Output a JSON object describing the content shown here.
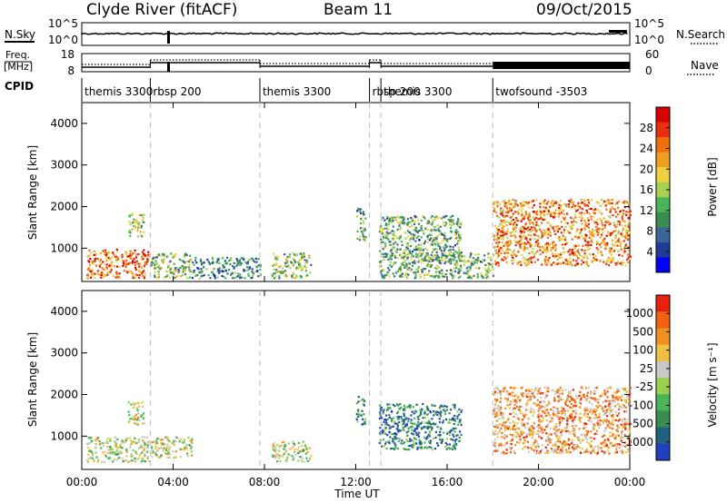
{
  "header": {
    "station": "Clyde River (fitACF)",
    "beam": "Beam 11",
    "date": "09/Oct/2015"
  },
  "panels": {
    "noise": {
      "left_label": "N.Sky",
      "left_ticks": [
        "10^5",
        "10^0"
      ],
      "right_label": "N.Search",
      "right_ticks": [
        "10^5",
        "10^0"
      ]
    },
    "freq": {
      "left_label_top": "Freq.",
      "left_label_unit": "[MHz]",
      "left_ticks": [
        "18",
        "8"
      ],
      "right_label": "Nave",
      "right_ticks": [
        "60",
        "0"
      ]
    },
    "cpid": {
      "label": "CPID",
      "segments": [
        {
          "name": "themis 3300",
          "start": 0.0,
          "end": 3.0
        },
        {
          "name": "rbsp 200",
          "start": 3.0,
          "end": 7.8
        },
        {
          "name": "themis 3300",
          "start": 7.8,
          "end": 12.6
        },
        {
          "name": "rbsp 200",
          "start": 12.6,
          "end": 13.1
        },
        {
          "name": "themis 3300",
          "start": 13.1,
          "end": 18.0
        },
        {
          "name": "twofsound -3503",
          "start": 18.0,
          "end": 24.0
        }
      ]
    }
  },
  "chart_data": [
    {
      "type": "heatmap",
      "name": "power",
      "ylabel": "Slant Range [km]",
      "yticks": [
        "4000",
        "3000",
        "2000",
        "1000"
      ],
      "ylim": [
        200,
        4500
      ],
      "colorbar_label": "Power [dB]",
      "colorbar_ticks": [
        "28",
        "24",
        "20",
        "16",
        "12",
        "8",
        "4"
      ],
      "colorbar_colors": [
        "#0000ff",
        "#1e3c96",
        "#3c6496",
        "#3a8c50",
        "#4ab45a",
        "#a8d050",
        "#f0d040",
        "#f0a020",
        "#f07010",
        "#e83010",
        "#d80000"
      ],
      "scatter_regions": [
        {
          "t0": 0.2,
          "t1": 2.9,
          "r0": 300,
          "r1": 1000,
          "level": 0.78
        },
        {
          "t0": 2.0,
          "t1": 2.7,
          "r0": 1300,
          "r1": 1850,
          "level": 0.5
        },
        {
          "t0": 3.0,
          "t1": 4.8,
          "r0": 300,
          "r1": 900,
          "level": 0.45
        },
        {
          "t0": 4.8,
          "t1": 7.8,
          "r0": 300,
          "r1": 800,
          "level": 0.3
        },
        {
          "t0": 8.3,
          "t1": 10.0,
          "r0": 300,
          "r1": 900,
          "level": 0.45
        },
        {
          "t0": 12.0,
          "t1": 12.4,
          "r0": 1200,
          "r1": 2000,
          "level": 0.35
        },
        {
          "t0": 13.0,
          "t1": 16.6,
          "r0": 700,
          "r1": 1800,
          "level": 0.38
        },
        {
          "t0": 13.0,
          "t1": 18.0,
          "r0": 300,
          "r1": 900,
          "level": 0.4
        },
        {
          "t0": 18.0,
          "t1": 24.0,
          "r0": 600,
          "r1": 2200,
          "level": 0.72
        }
      ]
    },
    {
      "type": "heatmap",
      "name": "velocity",
      "ylabel": "Slant Range [km]",
      "yticks": [
        "4000",
        "3000",
        "2000",
        "1000"
      ],
      "ylim": [
        200,
        4500
      ],
      "xlabel": "Time UT",
      "xticks": [
        "00:00",
        "04:00",
        "08:00",
        "12:00",
        "16:00",
        "20:00",
        "00:00"
      ],
      "xlim": [
        0,
        24
      ],
      "colorbar_label": "Velocity [m s⁻¹]",
      "colorbar_ticks": [
        "1000",
        "500",
        "100",
        "25",
        "-25",
        "-100",
        "-500",
        "-1000"
      ],
      "colorbar_colors": [
        "#2040c0",
        "#206080",
        "#3a8c50",
        "#4ab45a",
        "#9ad050",
        "#c8c8c8",
        "#f0c040",
        "#f09020",
        "#f06010",
        "#e82010"
      ],
      "scatter_regions": [
        {
          "t0": 0.2,
          "t1": 2.9,
          "r0": 400,
          "r1": 1000,
          "level": 0.5
        },
        {
          "t0": 2.0,
          "t1": 2.7,
          "r0": 1300,
          "r1": 1850,
          "level": 0.55
        },
        {
          "t0": 3.0,
          "t1": 4.8,
          "r0": 500,
          "r1": 1000,
          "level": 0.52
        },
        {
          "t0": 8.3,
          "t1": 10.0,
          "r0": 400,
          "r1": 900,
          "level": 0.5
        },
        {
          "t0": 12.0,
          "t1": 12.4,
          "r0": 1300,
          "r1": 2000,
          "level": 0.25
        },
        {
          "t0": 13.0,
          "t1": 16.6,
          "r0": 700,
          "r1": 1800,
          "level": 0.2
        },
        {
          "t0": 18.0,
          "t1": 24.0,
          "r0": 600,
          "r1": 2200,
          "level": 0.72
        }
      ]
    }
  ]
}
